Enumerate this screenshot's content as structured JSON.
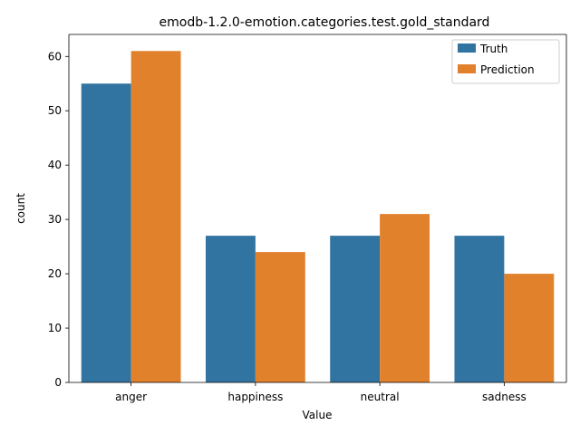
{
  "chart_data": {
    "type": "bar",
    "title": "emodb-1.2.0-emotion.categories.test.gold_standard",
    "xlabel": "Value",
    "ylabel": "count",
    "categories": [
      "anger",
      "happiness",
      "neutral",
      "sadness"
    ],
    "series": [
      {
        "name": "Truth",
        "values": [
          55,
          27,
          27,
          27
        ],
        "color": "#3274a1"
      },
      {
        "name": "Prediction",
        "values": [
          61,
          24,
          31,
          20
        ],
        "color": "#e1812c"
      }
    ],
    "ylim": [
      0,
      64.05
    ],
    "yticks": [
      0,
      10,
      20,
      30,
      40,
      50,
      60
    ],
    "grid": false,
    "legend_position": "top-right"
  }
}
